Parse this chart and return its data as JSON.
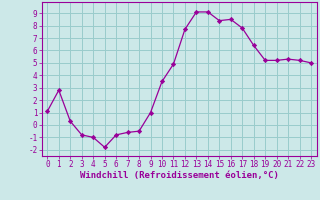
{
  "x": [
    0,
    1,
    2,
    3,
    4,
    5,
    6,
    7,
    8,
    9,
    10,
    11,
    12,
    13,
    14,
    15,
    16,
    17,
    18,
    19,
    20,
    21,
    22,
    23
  ],
  "y": [
    1.1,
    2.8,
    0.3,
    -0.8,
    -1.0,
    -1.8,
    -0.8,
    -0.6,
    -0.5,
    1.0,
    3.5,
    4.9,
    7.7,
    9.1,
    9.1,
    8.4,
    8.5,
    7.8,
    6.4,
    5.2,
    5.2,
    5.3,
    5.2,
    5.0
  ],
  "line_color": "#990099",
  "marker": "D",
  "marker_size": 2.2,
  "bg_color": "#cce8e8",
  "grid_color": "#99cccc",
  "xlabel": "Windchill (Refroidissement éolien,°C)",
  "xlabel_color": "#990099",
  "tick_color": "#990099",
  "spine_color": "#990099",
  "xlim": [
    -0.5,
    23.5
  ],
  "ylim": [
    -2.5,
    9.9
  ],
  "yticks": [
    -2,
    -1,
    0,
    1,
    2,
    3,
    4,
    5,
    6,
    7,
    8,
    9
  ],
  "xticks": [
    0,
    1,
    2,
    3,
    4,
    5,
    6,
    7,
    8,
    9,
    10,
    11,
    12,
    13,
    14,
    15,
    16,
    17,
    18,
    19,
    20,
    21,
    22,
    23
  ],
  "tick_fontsize": 5.5,
  "xlabel_fontsize": 6.5
}
